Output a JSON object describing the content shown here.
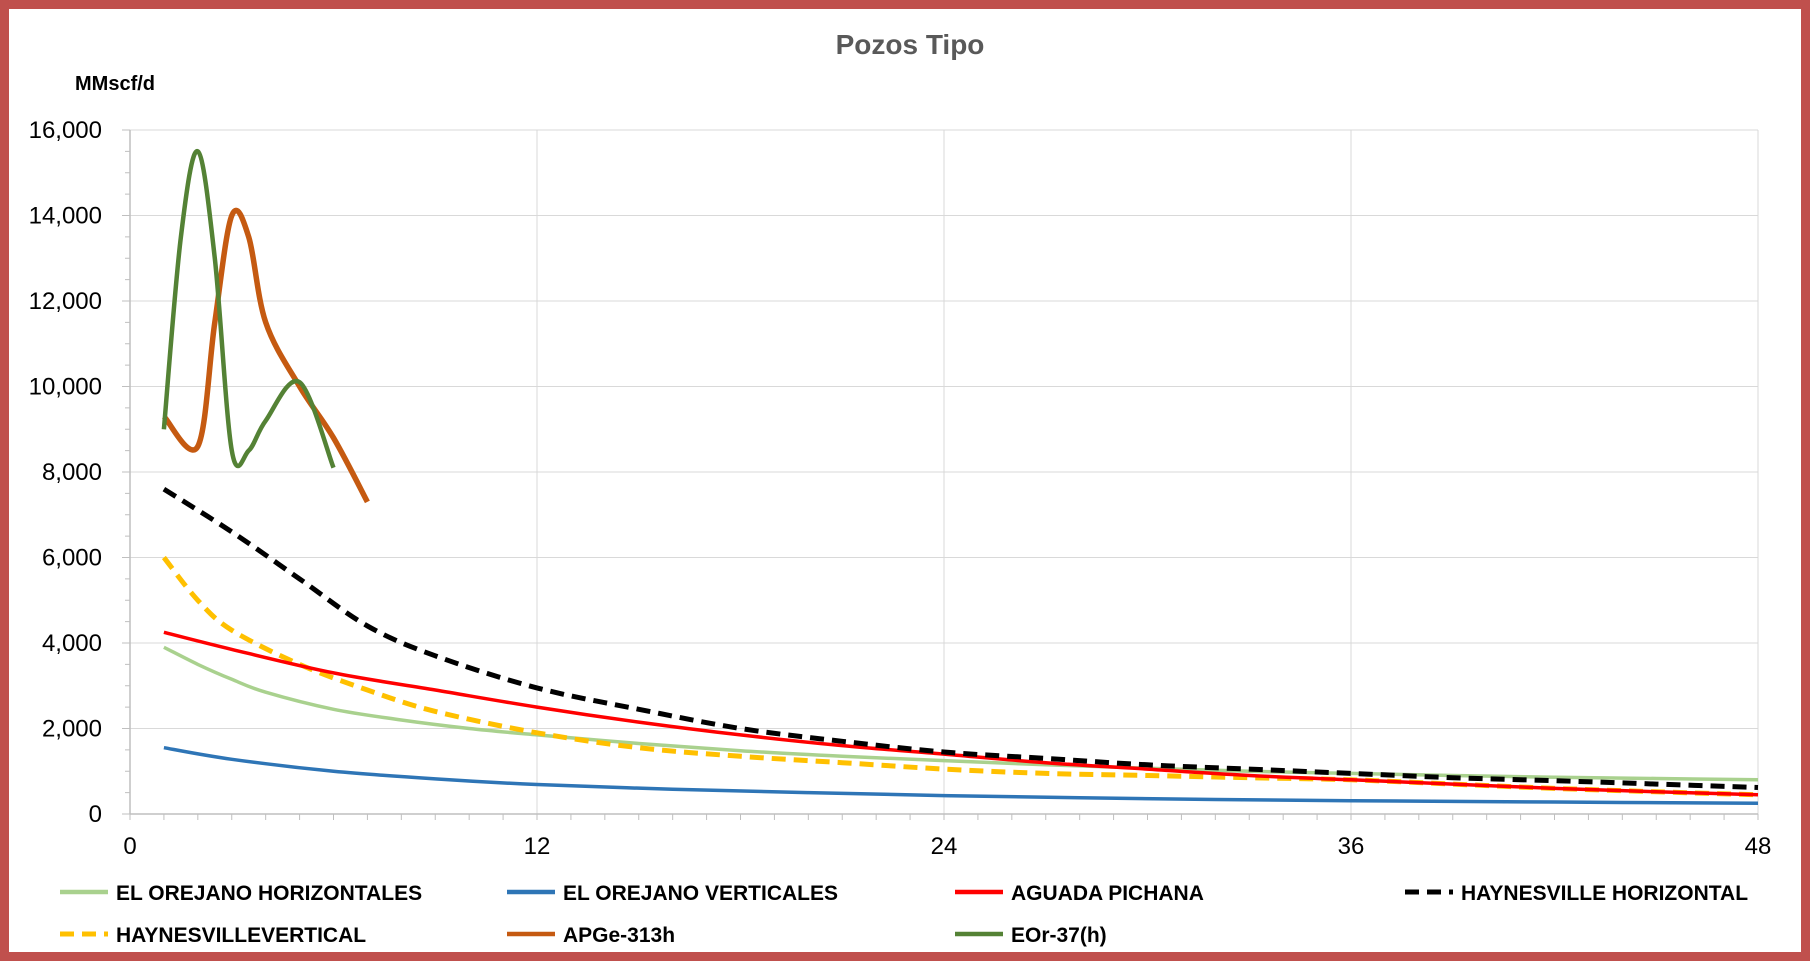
{
  "chart_data": {
    "type": "line",
    "title": "Pozos Tipo",
    "ylabel": "MMscf/d",
    "xlabel": "",
    "xlim": [
      0,
      48
    ],
    "ylim": [
      0,
      16000
    ],
    "x_ticks": [
      "0",
      "12",
      "24",
      "36",
      "48"
    ],
    "y_ticks": [
      "0",
      "2,000",
      "4,000",
      "6,000",
      "8,000",
      "10,000",
      "12,000",
      "14,000",
      "16,000"
    ],
    "grid": true,
    "legend_position": "bottom",
    "series": [
      {
        "name": "EL OREJANO HORIZONTALES",
        "color": "#a9d18e",
        "dash": "solid",
        "x": [
          1,
          2,
          3,
          4,
          6,
          8,
          10,
          12,
          15,
          18,
          21,
          24,
          27,
          30,
          33,
          36,
          39,
          42,
          45,
          48
        ],
        "y": [
          3900,
          3500,
          3150,
          2850,
          2450,
          2200,
          2000,
          1850,
          1650,
          1480,
          1350,
          1250,
          1150,
          1070,
          1000,
          950,
          900,
          860,
          830,
          800
        ]
      },
      {
        "name": "EL OREJANO VERTICALES",
        "color": "#2e75b6",
        "dash": "solid",
        "x": [
          1,
          3,
          6,
          9,
          12,
          16,
          20,
          24,
          28,
          32,
          36,
          40,
          44,
          48
        ],
        "y": [
          1550,
          1280,
          1000,
          820,
          690,
          580,
          500,
          430,
          380,
          340,
          310,
          290,
          270,
          250
        ]
      },
      {
        "name": "AGUADA PICHANA",
        "color": "#ff0000",
        "dash": "solid",
        "x": [
          1,
          3,
          6,
          9,
          12,
          15,
          18,
          21,
          24,
          27,
          30,
          33,
          36,
          39,
          42,
          45,
          48
        ],
        "y": [
          4250,
          3850,
          3300,
          2900,
          2500,
          2150,
          1850,
          1600,
          1400,
          1200,
          1050,
          900,
          800,
          700,
          600,
          520,
          450
        ]
      },
      {
        "name": "HAYNESVILLE HORIZONTAL",
        "color": "#000000",
        "dash": "dash",
        "x": [
          1,
          3,
          5,
          7,
          9,
          12,
          15,
          18,
          21,
          24,
          27,
          30,
          33,
          36,
          39,
          42,
          45,
          48
        ],
        "y": [
          7600,
          6600,
          5500,
          4400,
          3700,
          2950,
          2450,
          2000,
          1700,
          1450,
          1300,
          1150,
          1050,
          950,
          850,
          780,
          700,
          620
        ]
      },
      {
        "name": "HAYNESVILLEVERTICAL",
        "color": "#ffc000",
        "dash": "dash",
        "x": [
          1,
          2,
          3,
          5,
          7,
          9,
          12,
          15,
          18,
          21,
          24,
          27,
          30,
          33,
          36,
          39,
          42,
          45,
          48
        ],
        "y": [
          6000,
          5000,
          4300,
          3500,
          2900,
          2400,
          1900,
          1550,
          1350,
          1200,
          1050,
          950,
          900,
          850,
          800,
          700,
          600,
          520,
          450
        ]
      },
      {
        "name": "APGe-313h",
        "color": "#c55a11",
        "dash": "solid",
        "x": [
          1,
          2,
          2.5,
          3,
          3.5,
          4,
          5,
          6,
          7
        ],
        "y": [
          9300,
          8600,
          11500,
          14000,
          13500,
          11500,
          10000,
          8800,
          7300
        ]
      },
      {
        "name": "EOr-37(h)",
        "color": "#548235",
        "dash": "solid",
        "x": [
          1,
          1.5,
          2,
          2.5,
          3,
          3.5,
          4,
          5,
          6
        ],
        "y": [
          9000,
          13500,
          15500,
          13000,
          8500,
          8500,
          9200,
          10100,
          8100
        ]
      }
    ]
  }
}
